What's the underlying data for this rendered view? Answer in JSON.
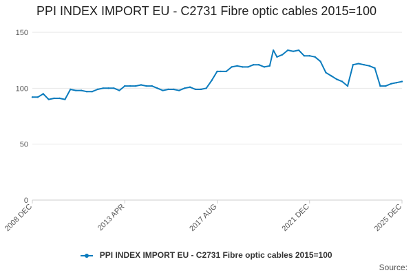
{
  "title": "PPI INDEX IMPORT EU - C2731 Fibre optic cables 2015=100",
  "legend": {
    "label": "PPI INDEX IMPORT EU - C2731 Fibre optic cables 2015=100"
  },
  "source": "Source:",
  "colors": {
    "series": "#0a7bbd",
    "grid": "#e6e6e6",
    "axis": "#cccccc"
  },
  "chart_data": {
    "type": "line",
    "title": "PPI INDEX IMPORT EU - C2731 Fibre optic cables 2015=100",
    "xlabel": "",
    "ylabel": "",
    "ylim": [
      0,
      150
    ],
    "yticks": [
      0,
      50,
      100,
      150
    ],
    "x_tick_labels": [
      "2008 DEC",
      "2013 APR",
      "2017 AUG",
      "2021 DEC",
      "2025 DEC"
    ],
    "grid": "horizontal",
    "legend_position": "bottom",
    "series": [
      {
        "name": "PPI INDEX IMPORT EU - C2731 Fibre optic cables 2015=100",
        "x": [
          "2008-12",
          "2009-03",
          "2009-06",
          "2009-09",
          "2009-12",
          "2010-03",
          "2010-06",
          "2010-09",
          "2010-12",
          "2011-03",
          "2011-06",
          "2011-09",
          "2011-12",
          "2012-03",
          "2012-06",
          "2012-09",
          "2012-12",
          "2013-03",
          "2013-06",
          "2013-09",
          "2013-12",
          "2014-03",
          "2014-06",
          "2014-09",
          "2014-12",
          "2015-03",
          "2015-06",
          "2015-09",
          "2015-12",
          "2016-03",
          "2016-06",
          "2016-09",
          "2016-12",
          "2017-03",
          "2017-06",
          "2017-08",
          "2017-11",
          "2018-02",
          "2018-05",
          "2018-08",
          "2018-11",
          "2019-02",
          "2019-05",
          "2019-08",
          "2019-11",
          "2020-01",
          "2020-03",
          "2020-06",
          "2020-09",
          "2020-12",
          "2021-03",
          "2021-06",
          "2021-09",
          "2021-12",
          "2022-03",
          "2022-06",
          "2022-09",
          "2022-12",
          "2023-03",
          "2023-06",
          "2023-09",
          "2023-12",
          "2024-03",
          "2024-06",
          "2024-09",
          "2024-12",
          "2025-03",
          "2025-06",
          "2025-09",
          "2025-12"
        ],
        "values": [
          92,
          92,
          95,
          90,
          91,
          91,
          90,
          99,
          98,
          98,
          97,
          97,
          99,
          100,
          100,
          100,
          98,
          102,
          102,
          102,
          103,
          102,
          102,
          100,
          98,
          99,
          99,
          98,
          100,
          101,
          99,
          99,
          100,
          107,
          115,
          115,
          115,
          119,
          120,
          119,
          119,
          121,
          121,
          119,
          120,
          134,
          128,
          130,
          134,
          133,
          134,
          129,
          129,
          128,
          124,
          114,
          111,
          108,
          106,
          102,
          121,
          122,
          121,
          120,
          118,
          102,
          102,
          104,
          105,
          106
        ]
      }
    ]
  }
}
